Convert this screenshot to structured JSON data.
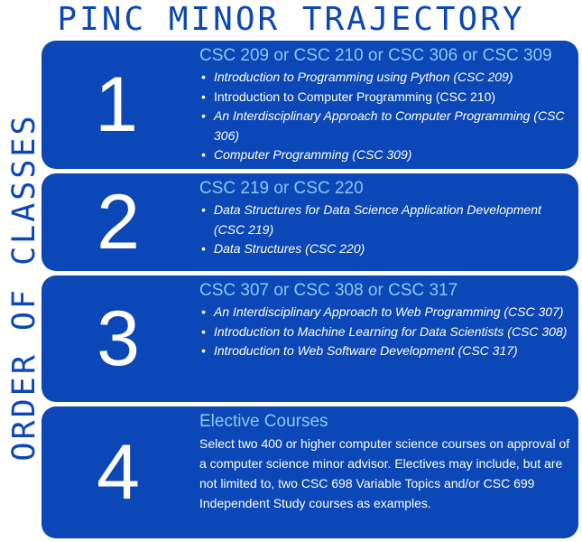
{
  "title": "PINC MINOR TRAJECTORY",
  "side_label": "ORDER OF CLASSES",
  "steps": [
    {
      "number": "1",
      "heading": "CSC 209 or CSC 210 or CSC 306 or CSC 309",
      "items": [
        "Introduction to Programming using Python (CSC 209)",
        "Introduction to Computer Programming (CSC 210)",
        "An Interdisciplinary Approach to Computer Programming (CSC 306)",
        "Computer Programming (CSC 309)"
      ]
    },
    {
      "number": "2",
      "heading": "CSC 219 or CSC 220",
      "items": [
        "Data Structures for Data Science Application Development (CSC 219)",
        "Data Structures (CSC 220)"
      ]
    },
    {
      "number": "3",
      "heading": "CSC 307 or CSC 308 or CSC 317",
      "items": [
        "An Interdisciplinary Approach to Web Programming (CSC 307)",
        "Introduction to Machine Learning for Data Scientists (CSC 308)",
        "Introduction to Web Software Development (CSC 317)"
      ]
    },
    {
      "number": "4",
      "heading": "Elective Courses",
      "description": "Select two 400 or higher computer science courses on approval of a computer science minor advisor. Electives may include, but are not limited to, two CSC 698 Variable Topics and/or CSC 699 Independent Study courses as examples."
    }
  ],
  "colors": {
    "primary": "#0b47b6",
    "heading": "#8ec7f6",
    "text": "#ffffff",
    "background": "#ffffff"
  }
}
